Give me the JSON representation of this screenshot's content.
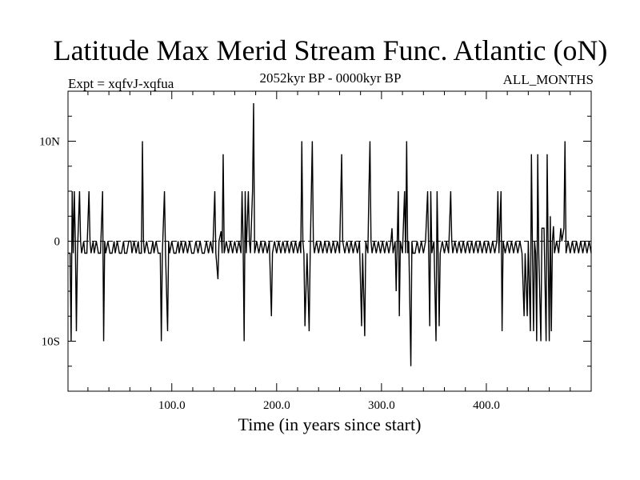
{
  "chart_data": {
    "type": "line",
    "title": "Latitude Max Merid Stream Func. Atlantic (oN)",
    "subtitle": "2052kyr BP - 0000kyr BP",
    "expt_label": "Expt = xqfvJ-xqfua",
    "period_label": "ALL_MONTHS",
    "xlabel": "Time (in years since start)",
    "ylabel": "",
    "xlim": [
      1,
      500
    ],
    "ylim": [
      -15,
      15
    ],
    "x_ticks": [
      {
        "value": 100,
        "label": "100.0"
      },
      {
        "value": 200,
        "label": "200.0"
      },
      {
        "value": 300,
        "label": "300.0"
      },
      {
        "value": 400,
        "label": "400.0"
      }
    ],
    "y_ticks": [
      {
        "value": 10,
        "label": "10N"
      },
      {
        "value": 0,
        "label": "0"
      },
      {
        "value": -10,
        "label": "10S"
      }
    ],
    "zero_line": true,
    "series": [
      {
        "points": [
          [
            1,
            -1.2
          ],
          [
            3,
            -1.2
          ],
          [
            4,
            -10
          ],
          [
            5,
            5
          ],
          [
            6,
            -1.2
          ],
          [
            7,
            5
          ],
          [
            8,
            0
          ],
          [
            9,
            -9
          ],
          [
            10,
            -1.2
          ],
          [
            12,
            5
          ],
          [
            13,
            0
          ],
          [
            14,
            -1.2
          ],
          [
            16,
            0
          ],
          [
            17,
            -1.2
          ],
          [
            19,
            -1.2
          ],
          [
            21,
            5
          ],
          [
            22,
            0
          ],
          [
            23,
            -1.2
          ],
          [
            25,
            0
          ],
          [
            26,
            -1.2
          ],
          [
            28,
            0
          ],
          [
            30,
            -1.2
          ],
          [
            32,
            -1.2
          ],
          [
            34,
            5
          ],
          [
            35,
            -10
          ],
          [
            36,
            0
          ],
          [
            37,
            -1.2
          ],
          [
            39,
            0
          ],
          [
            41,
            -1.2
          ],
          [
            43,
            -1.2
          ],
          [
            45,
            0
          ],
          [
            46,
            -1.2
          ],
          [
            48,
            0
          ],
          [
            50,
            -1.2
          ],
          [
            52,
            -1.2
          ],
          [
            54,
            0
          ],
          [
            55,
            -1.2
          ],
          [
            57,
            -1.2
          ],
          [
            59,
            0
          ],
          [
            61,
            0
          ],
          [
            62,
            -1.2
          ],
          [
            64,
            0
          ],
          [
            66,
            -1.2
          ],
          [
            68,
            0
          ],
          [
            69,
            -1.2
          ],
          [
            71,
            -1.2
          ],
          [
            72,
            10
          ],
          [
            73,
            0
          ],
          [
            74,
            -1.2
          ],
          [
            76,
            0
          ],
          [
            78,
            -1.2
          ],
          [
            80,
            -1.2
          ],
          [
            82,
            0
          ],
          [
            83,
            -1.2
          ],
          [
            85,
            0
          ],
          [
            87,
            -1.2
          ],
          [
            89,
            -1.2
          ],
          [
            90,
            -10
          ],
          [
            91,
            -1.2
          ],
          [
            93,
            5
          ],
          [
            94,
            -1.2
          ],
          [
            96,
            -9
          ],
          [
            97,
            0
          ],
          [
            98,
            -1.2
          ],
          [
            100,
            0
          ],
          [
            102,
            -1.2
          ],
          [
            104,
            -1.2
          ],
          [
            106,
            0
          ],
          [
            107,
            -1.2
          ],
          [
            109,
            0
          ],
          [
            111,
            -1.2
          ],
          [
            113,
            0
          ],
          [
            115,
            -1.2
          ],
          [
            117,
            0
          ],
          [
            119,
            -1.2
          ],
          [
            121,
            -1.2
          ],
          [
            123,
            0
          ],
          [
            125,
            -1.2
          ],
          [
            127,
            0
          ],
          [
            129,
            -1.2
          ],
          [
            131,
            -1.2
          ],
          [
            133,
            0
          ],
          [
            135,
            -1.2
          ],
          [
            137,
            0
          ],
          [
            139,
            -1.2
          ],
          [
            141,
            5
          ],
          [
            142,
            -1.2
          ],
          [
            144,
            -3.8
          ],
          [
            145,
            0
          ],
          [
            147,
            1
          ],
          [
            148,
            -1.2
          ],
          [
            149,
            8.7
          ],
          [
            150,
            -1.2
          ],
          [
            152,
            0
          ],
          [
            154,
            -1.2
          ],
          [
            156,
            0
          ],
          [
            158,
            -1.2
          ],
          [
            160,
            0
          ],
          [
            162,
            -1.2
          ],
          [
            164,
            0
          ],
          [
            166,
            -1.2
          ],
          [
            167,
            5
          ],
          [
            168,
            0
          ],
          [
            169,
            -10
          ],
          [
            170,
            5
          ],
          [
            171,
            -1.2
          ],
          [
            173,
            5
          ],
          [
            174,
            0
          ],
          [
            175,
            -1.2
          ],
          [
            177,
            5
          ],
          [
            178,
            13.8
          ],
          [
            179,
            -1.2
          ],
          [
            181,
            0
          ],
          [
            183,
            -1.2
          ],
          [
            185,
            0
          ],
          [
            187,
            -1.2
          ],
          [
            189,
            0
          ],
          [
            191,
            -1.2
          ],
          [
            193,
            0
          ],
          [
            195,
            -7.5
          ],
          [
            196,
            -1.2
          ],
          [
            198,
            0
          ],
          [
            200,
            -1.2
          ],
          [
            202,
            0
          ],
          [
            204,
            -1.2
          ],
          [
            206,
            0
          ],
          [
            208,
            -1.2
          ],
          [
            210,
            0
          ],
          [
            212,
            -1.2
          ],
          [
            214,
            0
          ],
          [
            216,
            -1.2
          ],
          [
            218,
            0
          ],
          [
            220,
            -1.2
          ],
          [
            222,
            0
          ],
          [
            223,
            -1.2
          ],
          [
            224,
            10
          ],
          [
            225,
            0
          ],
          [
            226,
            -1.2
          ],
          [
            227,
            -8.5
          ],
          [
            229,
            -1.2
          ],
          [
            231,
            -9
          ],
          [
            232,
            -1.2
          ],
          [
            234,
            10
          ],
          [
            235,
            0
          ],
          [
            236,
            -1.2
          ],
          [
            238,
            0
          ],
          [
            240,
            -1.2
          ],
          [
            242,
            0
          ],
          [
            244,
            -1.2
          ],
          [
            246,
            0
          ],
          [
            248,
            -1.2
          ],
          [
            250,
            0
          ],
          [
            252,
            -1.2
          ],
          [
            254,
            0
          ],
          [
            256,
            -1.2
          ],
          [
            258,
            0
          ],
          [
            260,
            -1.2
          ],
          [
            262,
            8.7
          ],
          [
            263,
            0
          ],
          [
            265,
            -1.2
          ],
          [
            267,
            0
          ],
          [
            269,
            -1.2
          ],
          [
            271,
            0
          ],
          [
            273,
            -1.2
          ],
          [
            275,
            0
          ],
          [
            277,
            -1.2
          ],
          [
            279,
            0
          ],
          [
            281,
            -8.5
          ],
          [
            282,
            -1.2
          ],
          [
            284,
            -9.5
          ],
          [
            285,
            0
          ],
          [
            287,
            -1.2
          ],
          [
            288,
            5
          ],
          [
            289,
            10
          ],
          [
            290,
            0
          ],
          [
            291,
            -1.2
          ],
          [
            293,
            0
          ],
          [
            295,
            -1.2
          ],
          [
            297,
            0
          ],
          [
            299,
            -1.2
          ],
          [
            301,
            0
          ],
          [
            303,
            -1.2
          ],
          [
            305,
            0
          ],
          [
            307,
            -1.2
          ],
          [
            309,
            0
          ],
          [
            310,
            1.3
          ],
          [
            311,
            -1.2
          ],
          [
            313,
            0
          ],
          [
            314,
            -5
          ],
          [
            316,
            5
          ],
          [
            317,
            -7.5
          ],
          [
            318,
            0
          ],
          [
            320,
            -1.2
          ],
          [
            322,
            5
          ],
          [
            323,
            -1.2
          ],
          [
            324,
            10
          ],
          [
            325,
            -1.2
          ],
          [
            326,
            0
          ],
          [
            328,
            -12.5
          ],
          [
            329,
            0
          ],
          [
            330,
            -1.2
          ],
          [
            332,
            -1.2
          ],
          [
            334,
            0
          ],
          [
            336,
            -1.2
          ],
          [
            338,
            0
          ],
          [
            340,
            -1.2
          ],
          [
            342,
            0
          ],
          [
            344,
            5
          ],
          [
            345,
            -1.2
          ],
          [
            346,
            -8.5
          ],
          [
            347,
            5
          ],
          [
            348,
            -1.2
          ],
          [
            350,
            0
          ],
          [
            352,
            -10
          ],
          [
            353,
            5
          ],
          [
            354,
            -1.2
          ],
          [
            355,
            -8.5
          ],
          [
            356,
            -1.2
          ],
          [
            358,
            0
          ],
          [
            360,
            -1.2
          ],
          [
            362,
            0
          ],
          [
            364,
            -1.2
          ],
          [
            366,
            5
          ],
          [
            367,
            0
          ],
          [
            368,
            -1.2
          ],
          [
            370,
            0
          ],
          [
            372,
            -1.2
          ],
          [
            374,
            0
          ],
          [
            376,
            -1.2
          ],
          [
            378,
            0
          ],
          [
            380,
            -1.2
          ],
          [
            382,
            0
          ],
          [
            384,
            -1.2
          ],
          [
            386,
            0
          ],
          [
            388,
            -1.2
          ],
          [
            390,
            0
          ],
          [
            392,
            -1.2
          ],
          [
            394,
            0
          ],
          [
            396,
            -1.2
          ],
          [
            398,
            0
          ],
          [
            400,
            -1.2
          ],
          [
            402,
            0
          ],
          [
            404,
            -1.2
          ],
          [
            406,
            0
          ],
          [
            408,
            -1.2
          ],
          [
            410,
            0
          ],
          [
            411,
            5
          ],
          [
            412,
            -1.2
          ],
          [
            414,
            5
          ],
          [
            415,
            -9
          ],
          [
            416,
            0
          ],
          [
            418,
            -1.2
          ],
          [
            420,
            0
          ],
          [
            422,
            -1.2
          ],
          [
            424,
            0
          ],
          [
            426,
            -1.2
          ],
          [
            428,
            0
          ],
          [
            430,
            -1.2
          ],
          [
            432,
            0
          ],
          [
            434,
            -1.2
          ],
          [
            436,
            -7.5
          ],
          [
            437,
            -1.2
          ],
          [
            439,
            -7.5
          ],
          [
            440,
            0
          ],
          [
            442,
            -9
          ],
          [
            443,
            8.7
          ],
          [
            444,
            -1.2
          ],
          [
            445,
            -9
          ],
          [
            446,
            0
          ],
          [
            447,
            -1.2
          ],
          [
            448,
            -10
          ],
          [
            449,
            8.7
          ],
          [
            450,
            -1.2
          ],
          [
            452,
            -10
          ],
          [
            453,
            1.3
          ],
          [
            455,
            1.3
          ],
          [
            457,
            -10
          ],
          [
            458,
            8.7
          ],
          [
            459,
            -1.2
          ],
          [
            460,
            -10
          ],
          [
            461,
            2.5
          ],
          [
            462,
            -9
          ],
          [
            463,
            0
          ],
          [
            464,
            1.5
          ],
          [
            465,
            -1.2
          ],
          [
            467,
            0
          ],
          [
            469,
            -1.2
          ],
          [
            471,
            1.3
          ],
          [
            472,
            0
          ],
          [
            474,
            1.3
          ],
          [
            475,
            10
          ],
          [
            476,
            -1.2
          ],
          [
            478,
            0
          ],
          [
            480,
            -1.2
          ],
          [
            482,
            0
          ],
          [
            484,
            -1.2
          ],
          [
            486,
            0
          ],
          [
            488,
            -1.2
          ],
          [
            490,
            0
          ],
          [
            492,
            -1.2
          ],
          [
            494,
            0
          ],
          [
            496,
            -1.2
          ],
          [
            498,
            0
          ],
          [
            500,
            -1.2
          ]
        ]
      }
    ]
  }
}
